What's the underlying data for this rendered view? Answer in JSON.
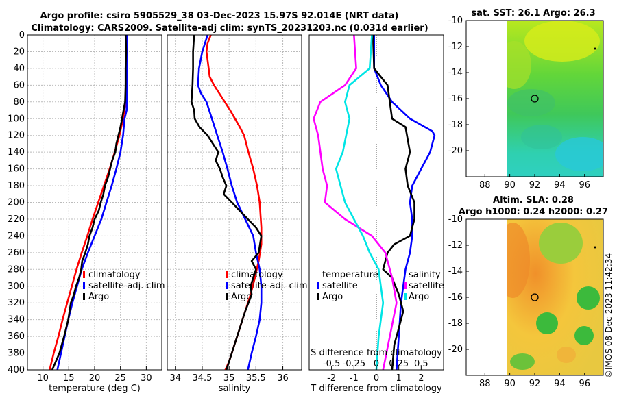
{
  "header": {
    "line1": "Argo profile: csiro 5905529_38 03-Dec-2023 15.97S 92.014E (NRT data)",
    "line2": "Climatology: CARS2009. Satellite-adj clim: synTS_20231203.nc (0.031d earlier)"
  },
  "watermark": "©IMOS 08-Dec-2023 11:42:34",
  "colors": {
    "climatology": "#ff0000",
    "satellite": "#0000ff",
    "argo": "#000000",
    "salinity_diff": "#ff00ff",
    "temperature_diff": "#00e5e5"
  },
  "chart_data": [
    {
      "id": "temperature",
      "type": "line",
      "xlabel": "temperature (deg C)",
      "xlim": [
        7,
        33
      ],
      "xticks": [
        "10",
        "15",
        "20",
        "25",
        "30"
      ],
      "ylim": [
        0,
        400
      ],
      "yticks": [
        "0",
        "20",
        "40",
        "60",
        "80",
        "100",
        "120",
        "140",
        "160",
        "180",
        "200",
        "220",
        "240",
        "260",
        "280",
        "300",
        "320",
        "340",
        "360",
        "380",
        "400"
      ],
      "legend": [
        "climatology",
        "satellite-adj. clim",
        "Argo"
      ],
      "series": [
        {
          "name": "climatology",
          "color": "#ff0000",
          "points": [
            [
              26.2,
              0
            ],
            [
              26.2,
              60
            ],
            [
              26.0,
              80
            ],
            [
              25.5,
              100
            ],
            [
              24.8,
              120
            ],
            [
              23.9,
              140
            ],
            [
              22.9,
              160
            ],
            [
              21.8,
              180
            ],
            [
              20.7,
              200
            ],
            [
              19.6,
              220
            ],
            [
              18.6,
              240
            ],
            [
              17.5,
              260
            ],
            [
              16.5,
              280
            ],
            [
              15.6,
              300
            ],
            [
              14.7,
              320
            ],
            [
              13.8,
              340
            ],
            [
              13.0,
              360
            ],
            [
              12.1,
              380
            ],
            [
              11.3,
              400
            ]
          ]
        },
        {
          "name": "satellite-adj. clim",
          "color": "#0000ff",
          "points": [
            [
              26.2,
              0
            ],
            [
              26.2,
              90
            ],
            [
              25.8,
              100
            ],
            [
              25.5,
              120
            ],
            [
              25.0,
              140
            ],
            [
              24.2,
              160
            ],
            [
              23.3,
              180
            ],
            [
              22.3,
              200
            ],
            [
              21.3,
              220
            ],
            [
              20.0,
              240
            ],
            [
              18.7,
              260
            ],
            [
              17.5,
              280
            ],
            [
              16.6,
              300
            ],
            [
              15.7,
              320
            ],
            [
              14.9,
              340
            ],
            [
              14.2,
              360
            ],
            [
              13.5,
              380
            ],
            [
              12.8,
              400
            ]
          ]
        },
        {
          "name": "Argo",
          "color": "#000000",
          "points": [
            [
              26.0,
              0
            ],
            [
              26.1,
              20
            ],
            [
              26.0,
              40
            ],
            [
              26.0,
              60
            ],
            [
              25.9,
              80
            ],
            [
              25.6,
              90
            ],
            [
              25.3,
              100
            ],
            [
              25.0,
              110
            ],
            [
              24.6,
              120
            ],
            [
              24.2,
              130
            ],
            [
              24.0,
              140
            ],
            [
              23.4,
              150
            ],
            [
              23.0,
              160
            ],
            [
              22.6,
              170
            ],
            [
              22.0,
              180
            ],
            [
              21.7,
              190
            ],
            [
              21.2,
              200
            ],
            [
              20.8,
              210
            ],
            [
              20.0,
              220
            ],
            [
              19.6,
              230
            ],
            [
              19.0,
              240
            ],
            [
              18.7,
              250
            ],
            [
              18.2,
              260
            ],
            [
              17.6,
              270
            ],
            [
              17.4,
              280
            ],
            [
              17.0,
              290
            ],
            [
              16.4,
              300
            ],
            [
              16.0,
              310
            ],
            [
              15.4,
              320
            ],
            [
              14.9,
              340
            ],
            [
              14.1,
              360
            ],
            [
              13.2,
              380
            ],
            [
              11.8,
              400
            ]
          ]
        }
      ]
    },
    {
      "id": "salinity",
      "type": "line",
      "xlabel": "salinity",
      "xlim": [
        33.85,
        36.35
      ],
      "xticks": [
        "34",
        "34.5",
        "35",
        "35.5",
        "36"
      ],
      "ylim": [
        0,
        400
      ],
      "legend": [
        "climatology",
        "satellite-adj. clim",
        "Argo"
      ],
      "series": [
        {
          "name": "climatology",
          "color": "#ff0000",
          "points": [
            [
              34.66,
              0
            ],
            [
              34.6,
              10
            ],
            [
              34.58,
              20
            ],
            [
              34.6,
              30
            ],
            [
              34.64,
              50
            ],
            [
              34.72,
              60
            ],
            [
              34.82,
              70
            ],
            [
              34.92,
              80
            ],
            [
              35.02,
              90
            ],
            [
              35.11,
              100
            ],
            [
              35.2,
              110
            ],
            [
              35.28,
              120
            ],
            [
              35.36,
              140
            ],
            [
              35.45,
              160
            ],
            [
              35.52,
              180
            ],
            [
              35.57,
              200
            ],
            [
              35.6,
              230
            ],
            [
              35.6,
              250
            ],
            [
              35.55,
              270
            ],
            [
              35.48,
              290
            ],
            [
              35.4,
              310
            ],
            [
              35.3,
              330
            ],
            [
              35.2,
              350
            ],
            [
              35.1,
              370
            ],
            [
              35.0,
              390
            ],
            [
              34.93,
              400
            ]
          ]
        },
        {
          "name": "satellite-adj. clim",
          "color": "#0000ff",
          "points": [
            [
              34.6,
              0
            ],
            [
              34.5,
              20
            ],
            [
              34.44,
              40
            ],
            [
              34.42,
              60
            ],
            [
              34.48,
              70
            ],
            [
              34.58,
              80
            ],
            [
              34.68,
              100
            ],
            [
              34.78,
              120
            ],
            [
              34.88,
              140
            ],
            [
              34.97,
              160
            ],
            [
              35.05,
              180
            ],
            [
              35.15,
              200
            ],
            [
              35.3,
              220
            ],
            [
              35.45,
              240
            ],
            [
              35.5,
              260
            ],
            [
              35.57,
              280
            ],
            [
              35.6,
              300
            ],
            [
              35.6,
              320
            ],
            [
              35.57,
              340
            ],
            [
              35.5,
              360
            ],
            [
              35.42,
              380
            ],
            [
              35.35,
              400
            ]
          ]
        },
        {
          "name": "Argo",
          "color": "#000000",
          "points": [
            [
              34.35,
              0
            ],
            [
              34.33,
              20
            ],
            [
              34.33,
              40
            ],
            [
              34.32,
              60
            ],
            [
              34.3,
              80
            ],
            [
              34.35,
              90
            ],
            [
              34.36,
              100
            ],
            [
              34.45,
              110
            ],
            [
              34.6,
              120
            ],
            [
              34.7,
              130
            ],
            [
              34.8,
              140
            ],
            [
              34.75,
              150
            ],
            [
              34.83,
              160
            ],
            [
              34.88,
              170
            ],
            [
              34.95,
              180
            ],
            [
              34.9,
              190
            ],
            [
              35.05,
              200
            ],
            [
              35.2,
              210
            ],
            [
              35.35,
              220
            ],
            [
              35.5,
              230
            ],
            [
              35.6,
              240
            ],
            [
              35.55,
              260
            ],
            [
              35.42,
              270
            ],
            [
              35.5,
              280
            ],
            [
              35.4,
              300
            ],
            [
              35.42,
              310
            ],
            [
              35.3,
              330
            ],
            [
              35.2,
              350
            ],
            [
              35.1,
              370
            ],
            [
              35.0,
              390
            ],
            [
              34.95,
              400
            ]
          ]
        }
      ]
    },
    {
      "id": "difference",
      "type": "line",
      "xlabel": "T difference from climatology",
      "xlim": [
        -3,
        3
      ],
      "xticks": [
        "-2",
        "-1",
        "0",
        "1",
        "2"
      ],
      "top_label": "S difference from climatology",
      "sticks": [
        "-0.5",
        "-0.25",
        "0",
        "0.25",
        "0.5"
      ],
      "slim": [
        -0.75,
        0.75
      ],
      "ylim": [
        0,
        400
      ],
      "legend_left": [
        "temperature",
        "satellite",
        "Argo"
      ],
      "legend_right": [
        "salinity",
        "satellite",
        "Argo"
      ],
      "series": [
        {
          "name": "T satellite",
          "color": "#0000ff",
          "points": [
            [
              -0.1,
              0
            ],
            [
              -0.1,
              40
            ],
            [
              0.2,
              60
            ],
            [
              0.7,
              80
            ],
            [
              1.5,
              100
            ],
            [
              2.5,
              115
            ],
            [
              2.6,
              120
            ],
            [
              2.4,
              140
            ],
            [
              2.0,
              160
            ],
            [
              1.6,
              180
            ],
            [
              1.5,
              200
            ],
            [
              1.6,
              220
            ],
            [
              1.6,
              240
            ],
            [
              1.5,
              260
            ],
            [
              1.3,
              280
            ],
            [
              1.2,
              300
            ],
            [
              1.1,
              320
            ],
            [
              1.05,
              340
            ],
            [
              1.0,
              360
            ],
            [
              0.95,
              380
            ],
            [
              0.9,
              400
            ]
          ]
        },
        {
          "name": "T Argo",
          "color": "#000000",
          "points": [
            [
              -0.15,
              0
            ],
            [
              -0.1,
              40
            ],
            [
              0.5,
              60
            ],
            [
              0.6,
              80
            ],
            [
              0.7,
              100
            ],
            [
              1.3,
              110
            ],
            [
              1.5,
              140
            ],
            [
              1.3,
              160
            ],
            [
              1.4,
              180
            ],
            [
              1.7,
              200
            ],
            [
              1.7,
              220
            ],
            [
              1.5,
              240
            ],
            [
              0.8,
              250
            ],
            [
              0.5,
              260
            ],
            [
              0.3,
              280
            ],
            [
              0.7,
              290
            ],
            [
              1.0,
              310
            ],
            [
              1.2,
              330
            ],
            [
              1.0,
              350
            ],
            [
              0.8,
              370
            ],
            [
              0.7,
              400
            ]
          ]
        },
        {
          "name": "S satellite",
          "color": "#ff00ff",
          "points": [
            [
              -1.0,
              0
            ],
            [
              -0.9,
              40
            ],
            [
              -1.4,
              60
            ],
            [
              -2.5,
              80
            ],
            [
              -2.8,
              100
            ],
            [
              -2.6,
              120
            ],
            [
              -2.4,
              160
            ],
            [
              -2.2,
              180
            ],
            [
              -2.3,
              200
            ],
            [
              -1.4,
              220
            ],
            [
              -0.2,
              240
            ],
            [
              0.4,
              260
            ],
            [
              0.7,
              290
            ],
            [
              0.9,
              320
            ],
            [
              0.6,
              360
            ],
            [
              0.3,
              400
            ]
          ]
        },
        {
          "name": "S Argo",
          "color": "#00e5e5",
          "points": [
            [
              -0.2,
              0
            ],
            [
              -0.3,
              40
            ],
            [
              -1.2,
              60
            ],
            [
              -1.4,
              80
            ],
            [
              -1.2,
              100
            ],
            [
              -1.5,
              140
            ],
            [
              -1.8,
              160
            ],
            [
              -1.6,
              180
            ],
            [
              -1.4,
              200
            ],
            [
              -1.0,
              220
            ],
            [
              -0.6,
              240
            ],
            [
              -0.3,
              260
            ],
            [
              0.1,
              280
            ],
            [
              0.2,
              300
            ],
            [
              0.3,
              320
            ],
            [
              0.1,
              360
            ],
            [
              0.0,
              400
            ]
          ]
        }
      ]
    },
    {
      "id": "sst_map",
      "type": "heatmap",
      "title": "sat. SST: 26.1 Argo: 26.3",
      "xticks": [
        "88",
        "90",
        "92",
        "94",
        "96"
      ],
      "yticks": [
        "-10",
        "-12",
        "-14",
        "-16",
        "-18",
        "-20"
      ],
      "xlim": [
        86.5,
        97.5
      ],
      "ylim": [
        -22,
        -10
      ],
      "profile_location": [
        92.0,
        -16.0
      ]
    },
    {
      "id": "sla_map",
      "type": "heatmap",
      "title1": "Altim. SLA: 0.28",
      "title2": "Argo h1000: 0.24 h2000: 0.27",
      "xticks": [
        "88",
        "90",
        "92",
        "94",
        "96"
      ],
      "yticks": [
        "-10",
        "-12",
        "-14",
        "-16",
        "-18",
        "-20"
      ],
      "xlim": [
        86.5,
        97.5
      ],
      "ylim": [
        -22,
        -10
      ],
      "profile_location": [
        92.0,
        -16.0
      ]
    }
  ]
}
